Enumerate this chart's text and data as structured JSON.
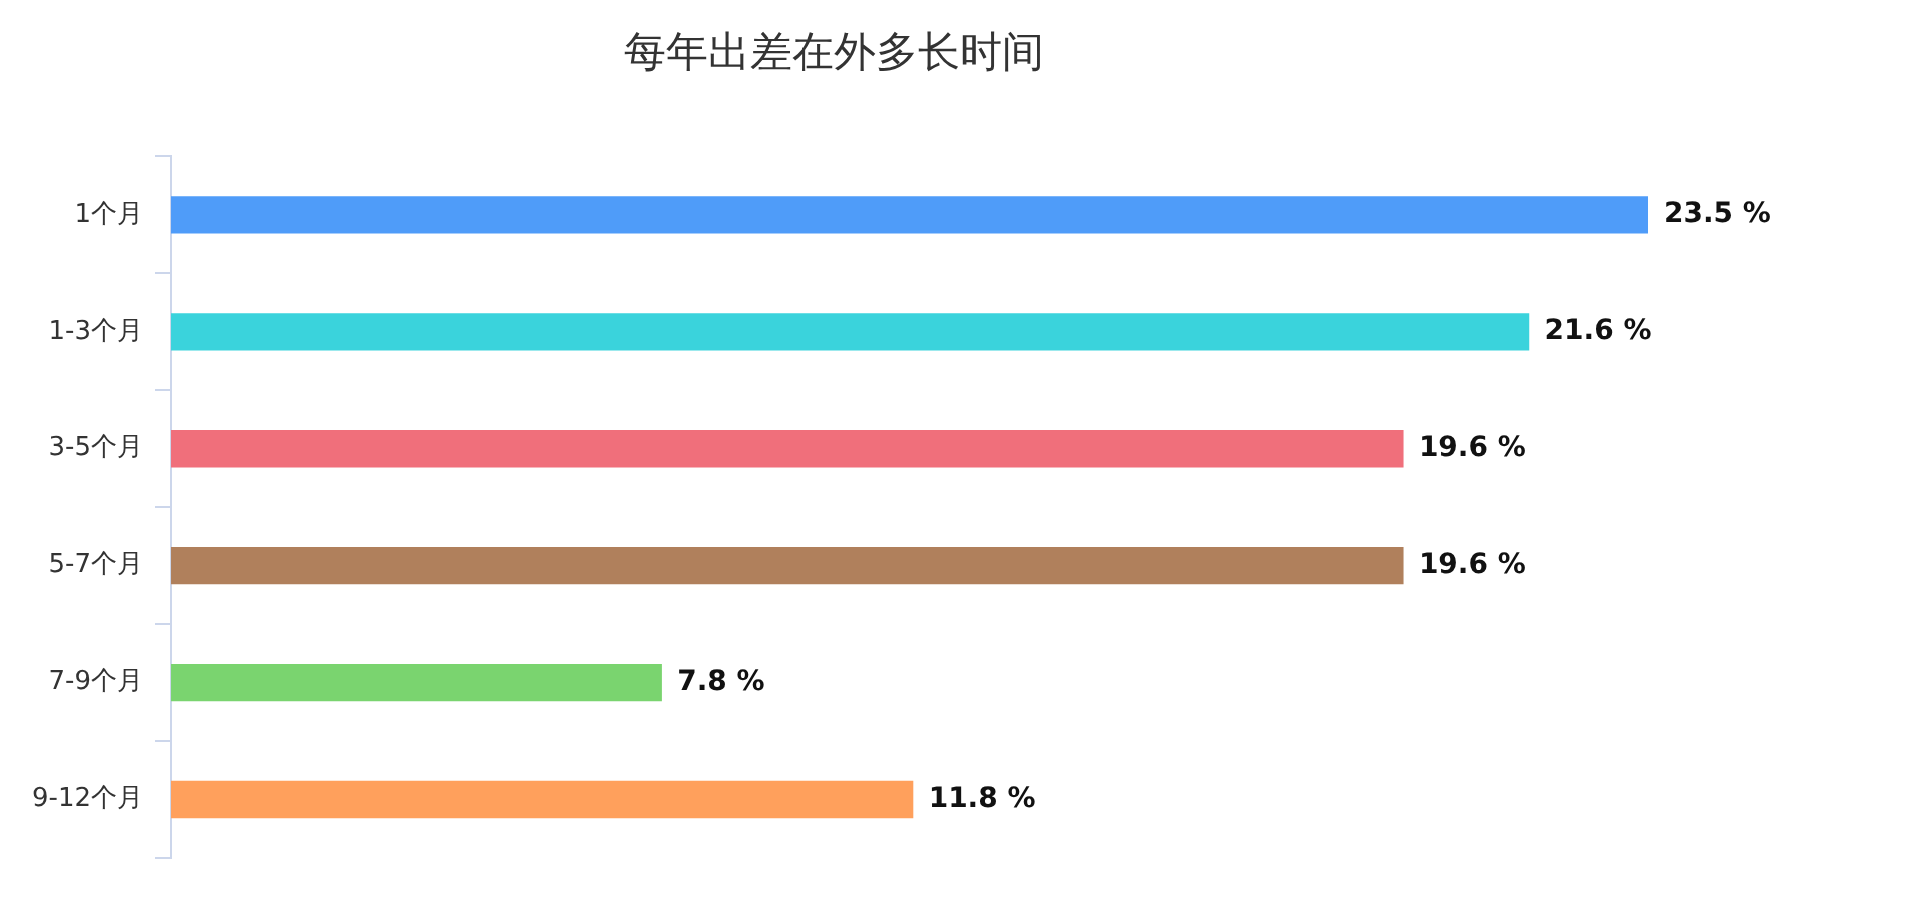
{
  "chart_data": {
    "type": "bar",
    "orientation": "horizontal",
    "title": "每年出差在外多长时间",
    "categories": [
      "1个月",
      "1-3个月",
      "3-5个月",
      "5-7个月",
      "7-9个月",
      "9-12个月"
    ],
    "values": [
      23.5,
      21.6,
      19.6,
      19.6,
      7.8,
      11.8
    ],
    "colors": [
      "#4f9cf9",
      "#3ad3dc",
      "#f06f7b",
      "#b0805c",
      "#7ad46f",
      "#ffa05c"
    ],
    "value_labels": [
      "23.5 %",
      "21.6 %",
      "19.6 %",
      "19.6 %",
      "7.8 %",
      "11.8 %"
    ],
    "grid": false,
    "legend": false
  }
}
